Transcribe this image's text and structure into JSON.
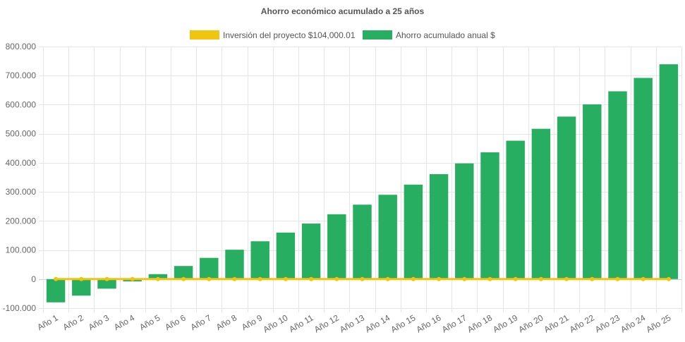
{
  "chart_data": {
    "type": "bar",
    "title": "Ahorro económico acumulado a 25 años",
    "categories": [
      "Año 1",
      "Año 2",
      "Año 3",
      "Año 4",
      "Año 5",
      "Año 6",
      "Año 7",
      "Año 8",
      "Año 9",
      "Año 10",
      "Año 11",
      "Año 12",
      "Año 13",
      "Año 14",
      "Año 15",
      "Año 16",
      "Año 17",
      "Año 18",
      "Año 19",
      "Año 20",
      "Año 21",
      "Año 22",
      "Año 23",
      "Año 24",
      "Año 25"
    ],
    "series": [
      {
        "name": "Inversión del proyecto $104,000.01",
        "kind": "line",
        "color": "#f1c40f",
        "values": [
          0,
          0,
          0,
          0,
          0,
          0,
          0,
          0,
          0,
          0,
          0,
          0,
          0,
          0,
          0,
          0,
          0,
          0,
          0,
          0,
          0,
          0,
          0,
          0,
          0
        ]
      },
      {
        "name": "Ahorro acumulado anual $",
        "kind": "bar",
        "color": "#27ae60",
        "values": [
          -80000,
          -57000,
          -33000,
          -8000,
          17000,
          45000,
          73000,
          101000,
          130000,
          160000,
          191000,
          223000,
          256000,
          290000,
          325000,
          361000,
          398000,
          436000,
          476000,
          517000,
          559000,
          601000,
          646000,
          692000,
          739000
        ]
      }
    ],
    "yticks": [
      "800.000",
      "700.000",
      "600.000",
      "500.000",
      "400.000",
      "300.000",
      "200.000",
      "100.000",
      "0",
      "-100.000"
    ],
    "ylim": [
      -100000,
      800000
    ],
    "xlabel": "",
    "ylabel": "",
    "grid": true,
    "legend_position": "top"
  }
}
